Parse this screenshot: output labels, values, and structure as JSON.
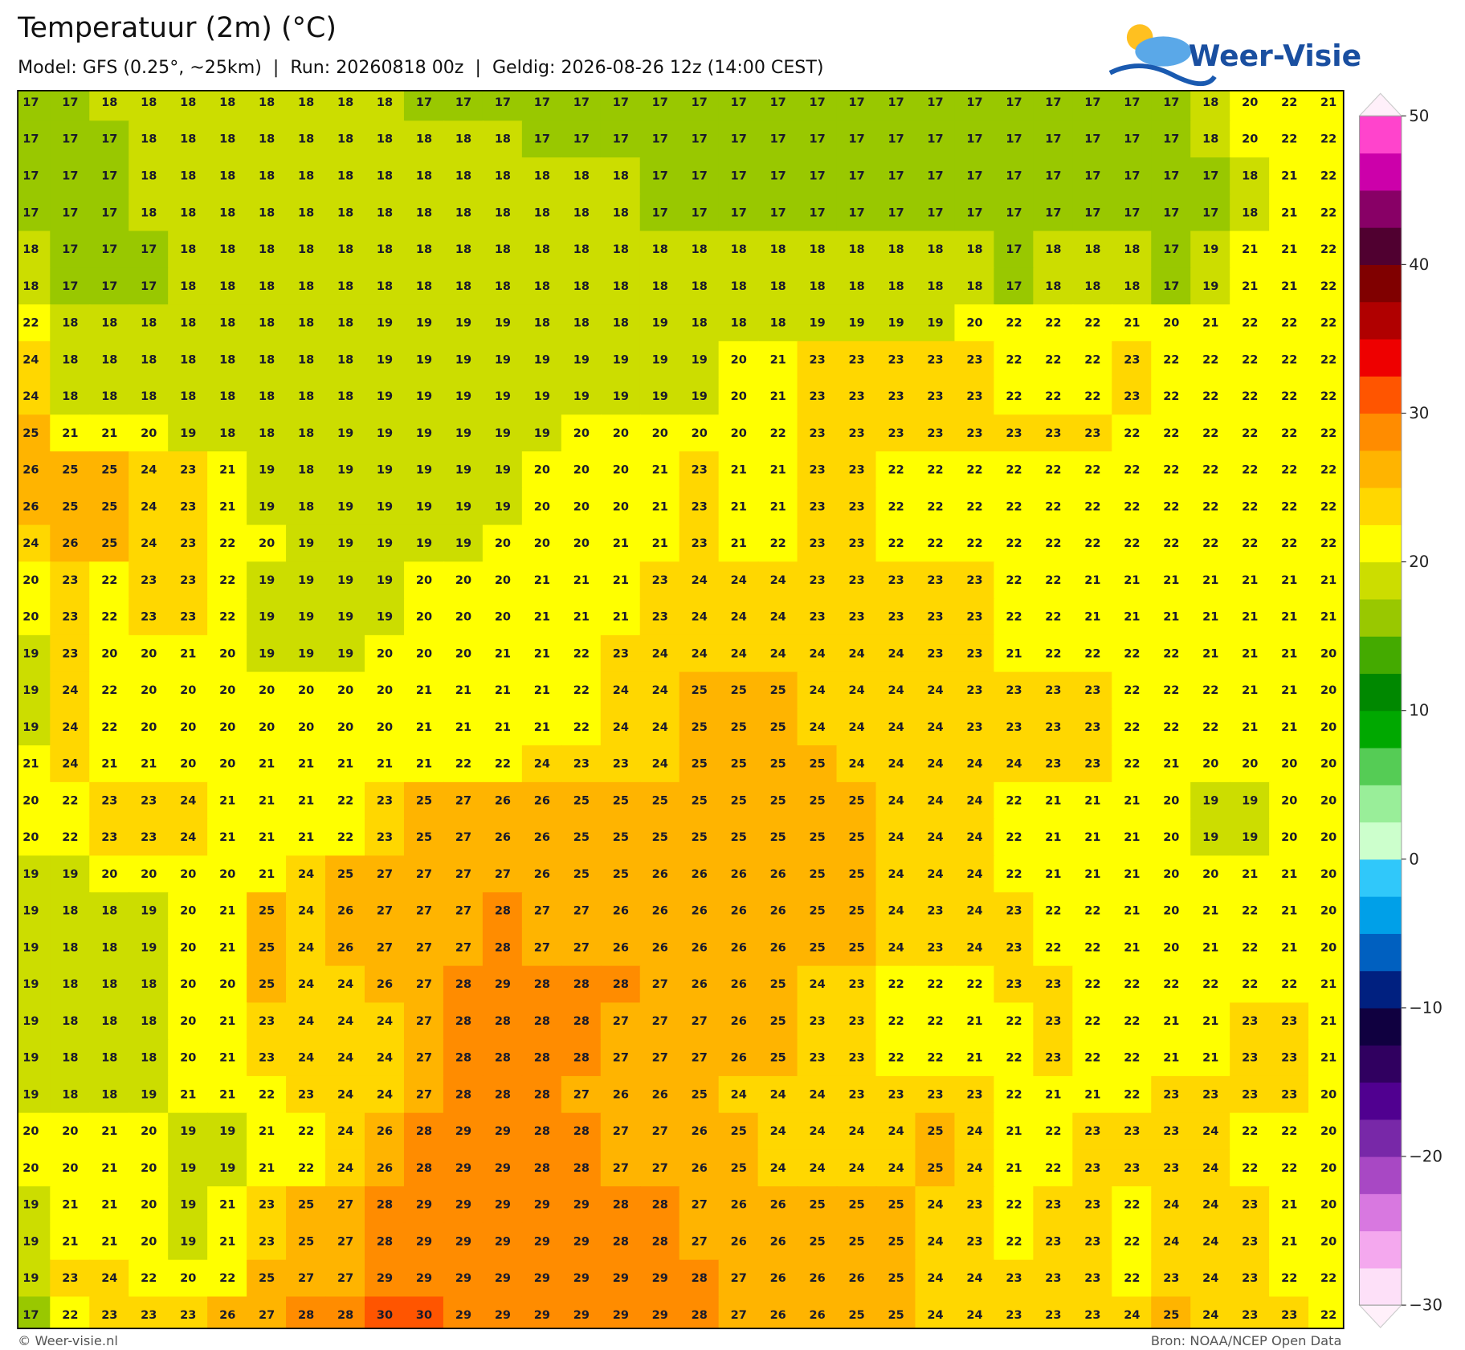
{
  "map": {
    "title": "Temperatuur (2m) (°C)",
    "subtitle": "Model: GFS (0.25°, ~25km)  |  Run: 20260818 00z  |  Geldig: 2026-08-26 12z (14:00 CEST)",
    "logo": "Weer-Visie",
    "footer_left": "© Weer-visie.nl",
    "footer_right": "Bron: NOAA/NCEP Open Data",
    "grid": [
      [
        17,
        17,
        18,
        18,
        18,
        18,
        18,
        18,
        18,
        18,
        17,
        17,
        17,
        17,
        17,
        17,
        17,
        17,
        17,
        17,
        17,
        17,
        17,
        17,
        17,
        17,
        17,
        17,
        17,
        17,
        18,
        20,
        22,
        21
      ],
      [
        17,
        17,
        17,
        18,
        18,
        18,
        18,
        18,
        18,
        18,
        18,
        18,
        18,
        17,
        17,
        17,
        17,
        17,
        17,
        17,
        17,
        17,
        17,
        17,
        17,
        17,
        17,
        17,
        17,
        17,
        18,
        20,
        22,
        22
      ],
      [
        17,
        17,
        17,
        18,
        18,
        18,
        18,
        18,
        18,
        18,
        18,
        18,
        18,
        18,
        18,
        18,
        17,
        17,
        17,
        17,
        17,
        17,
        17,
        17,
        17,
        17,
        17,
        17,
        17,
        17,
        17,
        18,
        21,
        22
      ],
      [
        17,
        17,
        17,
        18,
        18,
        18,
        18,
        18,
        18,
        18,
        18,
        18,
        18,
        18,
        18,
        18,
        17,
        17,
        17,
        17,
        17,
        17,
        17,
        17,
        17,
        17,
        17,
        17,
        17,
        17,
        17,
        18,
        21,
        22
      ],
      [
        18,
        17,
        17,
        17,
        18,
        18,
        18,
        18,
        18,
        18,
        18,
        18,
        18,
        18,
        18,
        18,
        18,
        18,
        18,
        18,
        18,
        18,
        18,
        18,
        18,
        17,
        18,
        18,
        18,
        17,
        19,
        21,
        21,
        22
      ],
      [
        18,
        17,
        17,
        17,
        18,
        18,
        18,
        18,
        18,
        18,
        18,
        18,
        18,
        18,
        18,
        18,
        18,
        18,
        18,
        18,
        18,
        18,
        18,
        18,
        18,
        17,
        18,
        18,
        18,
        17,
        19,
        21,
        21,
        22
      ],
      [
        22,
        18,
        18,
        18,
        18,
        18,
        18,
        18,
        18,
        19,
        19,
        19,
        19,
        18,
        18,
        18,
        19,
        18,
        18,
        18,
        19,
        19,
        19,
        19,
        20,
        22,
        22,
        22,
        21,
        20,
        21,
        22,
        22,
        22
      ],
      [
        24,
        18,
        18,
        18,
        18,
        18,
        18,
        18,
        18,
        19,
        19,
        19,
        19,
        19,
        19,
        19,
        19,
        19,
        20,
        21,
        23,
        23,
        23,
        23,
        23,
        22,
        22,
        22,
        23,
        22,
        22,
        22,
        22,
        22
      ],
      [
        24,
        18,
        18,
        18,
        18,
        18,
        18,
        18,
        18,
        19,
        19,
        19,
        19,
        19,
        19,
        19,
        19,
        19,
        20,
        21,
        23,
        23,
        23,
        23,
        23,
        22,
        22,
        22,
        23,
        22,
        22,
        22,
        22,
        22
      ],
      [
        25,
        21,
        21,
        20,
        19,
        18,
        18,
        18,
        19,
        19,
        19,
        19,
        19,
        19,
        20,
        20,
        20,
        20,
        20,
        22,
        23,
        23,
        23,
        23,
        23,
        23,
        23,
        23,
        22,
        22,
        22,
        22,
        22,
        22
      ],
      [
        26,
        25,
        25,
        24,
        23,
        21,
        19,
        18,
        19,
        19,
        19,
        19,
        19,
        20,
        20,
        20,
        21,
        23,
        21,
        21,
        23,
        23,
        22,
        22,
        22,
        22,
        22,
        22,
        22,
        22,
        22,
        22,
        22,
        22
      ],
      [
        26,
        25,
        25,
        24,
        23,
        21,
        19,
        18,
        19,
        19,
        19,
        19,
        19,
        20,
        20,
        20,
        21,
        23,
        21,
        21,
        23,
        23,
        22,
        22,
        22,
        22,
        22,
        22,
        22,
        22,
        22,
        22,
        22,
        22
      ],
      [
        24,
        26,
        25,
        24,
        23,
        22,
        20,
        19,
        19,
        19,
        19,
        19,
        20,
        20,
        20,
        21,
        21,
        23,
        21,
        22,
        23,
        23,
        22,
        22,
        22,
        22,
        22,
        22,
        22,
        22,
        22,
        22,
        22,
        22
      ],
      [
        20,
        23,
        22,
        23,
        23,
        22,
        19,
        19,
        19,
        19,
        20,
        20,
        20,
        21,
        21,
        21,
        23,
        24,
        24,
        24,
        23,
        23,
        23,
        23,
        23,
        22,
        22,
        21,
        21,
        21,
        21,
        21,
        21,
        21
      ],
      [
        20,
        23,
        22,
        23,
        23,
        22,
        19,
        19,
        19,
        19,
        20,
        20,
        20,
        21,
        21,
        21,
        23,
        24,
        24,
        24,
        23,
        23,
        23,
        23,
        23,
        22,
        22,
        21,
        21,
        21,
        21,
        21,
        21,
        21
      ],
      [
        19,
        23,
        20,
        20,
        21,
        20,
        19,
        19,
        19,
        20,
        20,
        20,
        21,
        21,
        22,
        23,
        24,
        24,
        24,
        24,
        24,
        24,
        24,
        23,
        23,
        21,
        22,
        22,
        22,
        22,
        21,
        21,
        21,
        20
      ],
      [
        19,
        24,
        22,
        20,
        20,
        20,
        20,
        20,
        20,
        20,
        21,
        21,
        21,
        21,
        22,
        24,
        24,
        25,
        25,
        25,
        24,
        24,
        24,
        24,
        23,
        23,
        23,
        23,
        22,
        22,
        22,
        21,
        21,
        20
      ],
      [
        19,
        24,
        22,
        20,
        20,
        20,
        20,
        20,
        20,
        20,
        21,
        21,
        21,
        21,
        22,
        24,
        24,
        25,
        25,
        25,
        24,
        24,
        24,
        24,
        23,
        23,
        23,
        23,
        22,
        22,
        22,
        21,
        21,
        20
      ],
      [
        21,
        24,
        21,
        21,
        20,
        20,
        21,
        21,
        21,
        21,
        21,
        22,
        22,
        24,
        23,
        23,
        24,
        25,
        25,
        25,
        25,
        24,
        24,
        24,
        24,
        24,
        23,
        23,
        22,
        21,
        20,
        20,
        20,
        20
      ],
      [
        20,
        22,
        23,
        23,
        24,
        21,
        21,
        21,
        22,
        23,
        25,
        27,
        26,
        26,
        25,
        25,
        25,
        25,
        25,
        25,
        25,
        25,
        24,
        24,
        24,
        22,
        21,
        21,
        21,
        20,
        19,
        19,
        20,
        20
      ],
      [
        20,
        22,
        23,
        23,
        24,
        21,
        21,
        21,
        22,
        23,
        25,
        27,
        26,
        26,
        25,
        25,
        25,
        25,
        25,
        25,
        25,
        25,
        24,
        24,
        24,
        22,
        21,
        21,
        21,
        20,
        19,
        19,
        20,
        20
      ],
      [
        19,
        19,
        20,
        20,
        20,
        20,
        21,
        24,
        25,
        27,
        27,
        27,
        27,
        26,
        25,
        25,
        26,
        26,
        26,
        26,
        25,
        25,
        24,
        24,
        24,
        22,
        21,
        21,
        21,
        20,
        20,
        21,
        21,
        20
      ],
      [
        19,
        18,
        18,
        19,
        20,
        21,
        25,
        24,
        26,
        27,
        27,
        27,
        28,
        27,
        27,
        26,
        26,
        26,
        26,
        26,
        25,
        25,
        24,
        23,
        24,
        23,
        22,
        22,
        21,
        20,
        21,
        22,
        21,
        20
      ],
      [
        19,
        18,
        18,
        19,
        20,
        21,
        25,
        24,
        26,
        27,
        27,
        27,
        28,
        27,
        27,
        26,
        26,
        26,
        26,
        26,
        25,
        25,
        24,
        23,
        24,
        23,
        22,
        22,
        21,
        20,
        21,
        22,
        21,
        20
      ],
      [
        19,
        18,
        18,
        18,
        20,
        20,
        25,
        24,
        24,
        26,
        27,
        28,
        29,
        28,
        28,
        28,
        27,
        26,
        26,
        25,
        24,
        23,
        22,
        22,
        22,
        23,
        23,
        22,
        22,
        22,
        22,
        22,
        22,
        21
      ],
      [
        19,
        18,
        18,
        18,
        20,
        21,
        23,
        24,
        24,
        24,
        27,
        28,
        28,
        28,
        28,
        27,
        27,
        27,
        26,
        25,
        23,
        23,
        22,
        22,
        21,
        22,
        23,
        22,
        22,
        21,
        21,
        23,
        23,
        21
      ],
      [
        19,
        18,
        18,
        18,
        20,
        21,
        23,
        24,
        24,
        24,
        27,
        28,
        28,
        28,
        28,
        27,
        27,
        27,
        26,
        25,
        23,
        23,
        22,
        22,
        21,
        22,
        23,
        22,
        22,
        21,
        21,
        23,
        23,
        21
      ],
      [
        19,
        18,
        18,
        19,
        21,
        21,
        22,
        23,
        24,
        24,
        27,
        28,
        28,
        28,
        27,
        26,
        26,
        25,
        24,
        24,
        24,
        23,
        23,
        23,
        23,
        22,
        21,
        21,
        22,
        23,
        23,
        23,
        23,
        20
      ],
      [
        20,
        20,
        21,
        20,
        19,
        19,
        21,
        22,
        24,
        26,
        28,
        29,
        29,
        28,
        28,
        27,
        27,
        26,
        25,
        24,
        24,
        24,
        24,
        25,
        24,
        21,
        22,
        23,
        23,
        23,
        24,
        22,
        22,
        20
      ],
      [
        20,
        20,
        21,
        20,
        19,
        19,
        21,
        22,
        24,
        26,
        28,
        29,
        29,
        28,
        28,
        27,
        27,
        26,
        25,
        24,
        24,
        24,
        24,
        25,
        24,
        21,
        22,
        23,
        23,
        23,
        24,
        22,
        22,
        20
      ],
      [
        19,
        21,
        21,
        20,
        19,
        21,
        23,
        25,
        27,
        28,
        29,
        29,
        29,
        29,
        29,
        28,
        28,
        27,
        26,
        26,
        25,
        25,
        25,
        24,
        23,
        22,
        23,
        23,
        22,
        24,
        24,
        23,
        21,
        20
      ],
      [
        19,
        21,
        21,
        20,
        19,
        21,
        23,
        25,
        27,
        28,
        29,
        29,
        29,
        29,
        29,
        28,
        28,
        27,
        26,
        26,
        25,
        25,
        25,
        24,
        23,
        22,
        23,
        23,
        22,
        24,
        24,
        23,
        21,
        20
      ],
      [
        19,
        23,
        24,
        22,
        20,
        22,
        25,
        27,
        27,
        29,
        29,
        29,
        29,
        29,
        29,
        29,
        29,
        28,
        27,
        26,
        26,
        26,
        25,
        24,
        24,
        23,
        23,
        23,
        22,
        23,
        24,
        23,
        22,
        22
      ],
      [
        17,
        22,
        23,
        23,
        23,
        26,
        27,
        28,
        28,
        30,
        30,
        29,
        29,
        29,
        29,
        29,
        29,
        28,
        27,
        26,
        26,
        25,
        25,
        24,
        24,
        23,
        23,
        23,
        24,
        25,
        24,
        23,
        23,
        22
      ]
    ],
    "colorbar": {
      "lim": [
        -30,
        50
      ],
      "ticks": [
        50,
        40,
        30,
        20,
        10,
        0,
        {
          "value": -10,
          "label": "−10"
        },
        {
          "value": -20,
          "label": "−20"
        },
        {
          "value": -30,
          "label": "−30"
        }
      ],
      "levels": [
        "#fde0f8",
        "#f4a8ee",
        "#d878e0",
        "#a848c4",
        "#7828a8",
        "#500090",
        "#300060",
        "#100040",
        "#002080",
        "#0060c0",
        "#00a0e8",
        "#30c8fa",
        "#ccffcc",
        "#99ee99",
        "#55cc55",
        "#00a800",
        "#008800",
        "#44aa00",
        "#99c800",
        "#ccdd00",
        "#ffff00",
        "#ffd700",
        "#ffb400",
        "#ff8c00",
        "#ff5500",
        "#ee0000",
        "#b00000",
        "#800000",
        "#500030",
        "#880066",
        "#cc00aa",
        "#ff44cc"
      ]
    }
  }
}
